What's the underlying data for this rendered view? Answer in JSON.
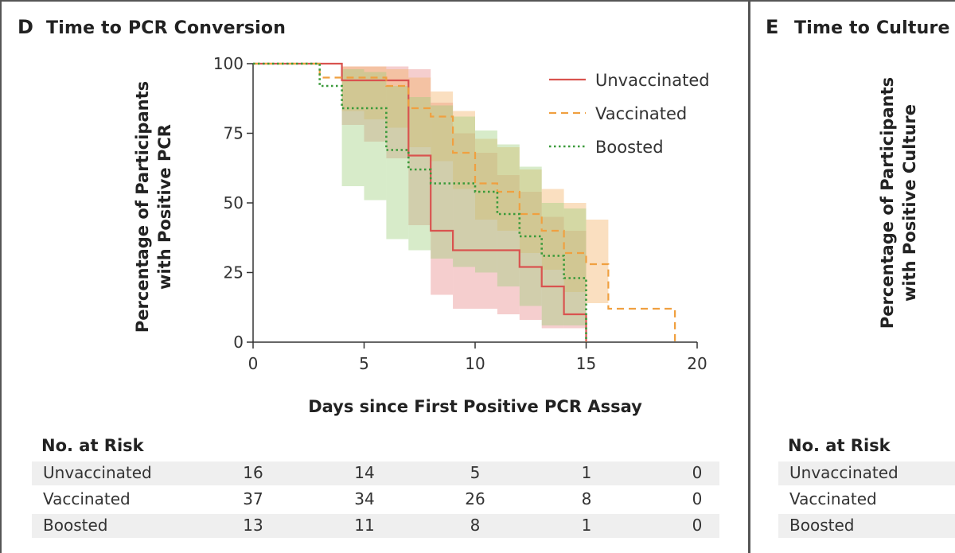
{
  "panel_d": {
    "letter": "D",
    "title": "Time to PCR Conversion",
    "risk_title": "No. at Risk",
    "risk_columns": [
      0,
      5,
      10,
      15,
      20
    ],
    "risk_rows": [
      {
        "label": "Unvaccinated",
        "values": [
          "16",
          "14",
          "5",
          "1",
          "0"
        ]
      },
      {
        "label": "Vaccinated",
        "values": [
          "37",
          "34",
          "26",
          "8",
          "0"
        ]
      },
      {
        "label": "Boosted",
        "values": [
          "13",
          "11",
          "8",
          "1",
          "0"
        ]
      }
    ]
  },
  "panel_e": {
    "letter": "E",
    "title": "Time to Culture",
    "ylabel_line1": "Percentage of Participants",
    "ylabel_line2": "with Positive Culture",
    "risk_title": "No. at Risk",
    "risk_labels": [
      "Unvaccinated",
      "Vaccinated",
      "Boosted"
    ]
  },
  "colors": {
    "unvaccinated": "#d9534f",
    "vaccinated": "#f0a040",
    "boosted": "#3a9a3a",
    "unvaccinated_fill": "#e88a8a",
    "vaccinated_fill": "#f2b26a",
    "boosted_fill": "#9fd07f"
  },
  "chart_data": {
    "type": "line",
    "title": "Time to PCR Conversion",
    "xlabel": "Days since First Positive PCR Assay",
    "ylabel_line1": "Percentage of Participants",
    "ylabel_line2": "with Positive PCR",
    "xlim": [
      0,
      20
    ],
    "ylim": [
      0,
      100
    ],
    "xticks": [
      0,
      5,
      10,
      15,
      20
    ],
    "yticks": [
      0,
      25,
      50,
      75,
      100
    ],
    "legend_position": "top-right",
    "series": [
      {
        "name": "Unvaccinated",
        "key": "unvaccinated",
        "style": "solid",
        "x": [
          0,
          4,
          7,
          8,
          9,
          12,
          13,
          14,
          15
        ],
        "y": [
          100,
          94,
          67,
          40,
          33,
          27,
          20,
          10,
          0
        ],
        "ci_x": [
          3,
          4,
          5,
          6,
          7,
          8,
          9,
          10,
          11,
          12,
          13,
          14,
          15
        ],
        "ci_lower": [
          100,
          78,
          72,
          66,
          42,
          17,
          12,
          12,
          10,
          8,
          5,
          5,
          0
        ],
        "ci_upper": [
          100,
          99,
          99,
          99,
          98,
          86,
          75,
          68,
          60,
          54,
          45,
          40,
          40
        ]
      },
      {
        "name": "Vaccinated",
        "key": "vaccinated",
        "style": "dashed",
        "x": [
          0,
          3,
          6,
          7,
          8,
          9,
          10,
          11,
          12,
          13,
          14,
          15,
          16,
          19
        ],
        "y": [
          100,
          95,
          92,
          84,
          81,
          68,
          57,
          54,
          46,
          40,
          32,
          28,
          12,
          0
        ],
        "ci_x": [
          3,
          4,
          5,
          6,
          7,
          8,
          9,
          10,
          11,
          12,
          13,
          14,
          15,
          16
        ],
        "ci_lower": [
          100,
          83,
          80,
          77,
          70,
          65,
          55,
          44,
          40,
          32,
          26,
          18,
          14,
          13
        ],
        "ci_upper": [
          100,
          99,
          99,
          98,
          95,
          90,
          83,
          73,
          70,
          62,
          55,
          50,
          44,
          44
        ]
      },
      {
        "name": "Boosted",
        "key": "boosted",
        "style": "dotted",
        "x": [
          0,
          3,
          4,
          6,
          7,
          8,
          10,
          11,
          12,
          13,
          14,
          15
        ],
        "y": [
          100,
          92,
          84,
          69,
          62,
          57,
          54,
          46,
          38,
          31,
          23,
          0
        ],
        "ci_x": [
          3,
          4,
          5,
          6,
          7,
          8,
          9,
          10,
          11,
          12,
          13,
          14,
          15
        ],
        "ci_lower": [
          100,
          56,
          51,
          37,
          33,
          30,
          27,
          25,
          20,
          13,
          6,
          6,
          0
        ],
        "ci_upper": [
          100,
          98,
          97,
          92,
          88,
          85,
          81,
          76,
          71,
          63,
          50,
          48,
          48
        ]
      }
    ]
  }
}
